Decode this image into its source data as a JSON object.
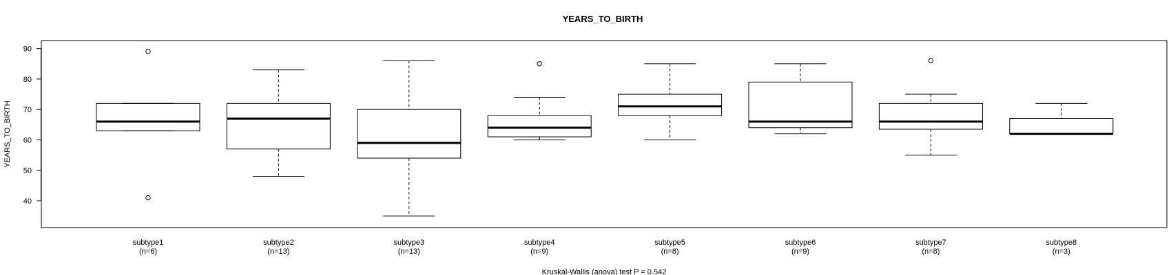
{
  "chart_data": {
    "type": "boxplot",
    "title": "YEARS_TO_BIRTH",
    "ylabel": "YEARS_TO_BIRTH",
    "xlabel": "",
    "ylim": [
      33,
      91.5
    ],
    "yticks": [
      40,
      50,
      60,
      70,
      80,
      90
    ],
    "footer": "Kruskal-Wallis (anova) test P = 0.542",
    "groups": [
      {
        "name": "subtype1",
        "n": "(n=6)",
        "whisker_low": 63,
        "q1": 63,
        "median": 66,
        "q3": 72,
        "whisker_high": 72,
        "outliers": [
          89,
          41
        ]
      },
      {
        "name": "subtype2",
        "n": "(n=13)",
        "whisker_low": 48,
        "q1": 57,
        "median": 67,
        "q3": 72,
        "whisker_high": 83,
        "outliers": []
      },
      {
        "name": "subtype3",
        "n": "(n=13)",
        "whisker_low": 35,
        "q1": 54,
        "median": 59,
        "q3": 70,
        "whisker_high": 86,
        "outliers": []
      },
      {
        "name": "subtype4",
        "n": "(n=9)",
        "whisker_low": 60,
        "q1": 61,
        "median": 64,
        "q3": 68,
        "whisker_high": 74,
        "outliers": [
          85
        ]
      },
      {
        "name": "subtype5",
        "n": "(n=8)",
        "whisker_low": 60,
        "q1": 68,
        "median": 71,
        "q3": 75,
        "whisker_high": 85,
        "outliers": []
      },
      {
        "name": "subtype6",
        "n": "(n=9)",
        "whisker_low": 62,
        "q1": 64,
        "median": 66,
        "q3": 79,
        "whisker_high": 85,
        "outliers": []
      },
      {
        "name": "subtype7",
        "n": "(n=8)",
        "whisker_low": 55,
        "q1": 63.5,
        "median": 66,
        "q3": 72,
        "whisker_high": 75,
        "outliers": [
          86
        ]
      },
      {
        "name": "subtype8",
        "n": "(n=3)",
        "whisker_low": 62,
        "q1": 62,
        "median": 62,
        "q3": 67,
        "whisker_high": 72,
        "outliers": []
      }
    ]
  }
}
